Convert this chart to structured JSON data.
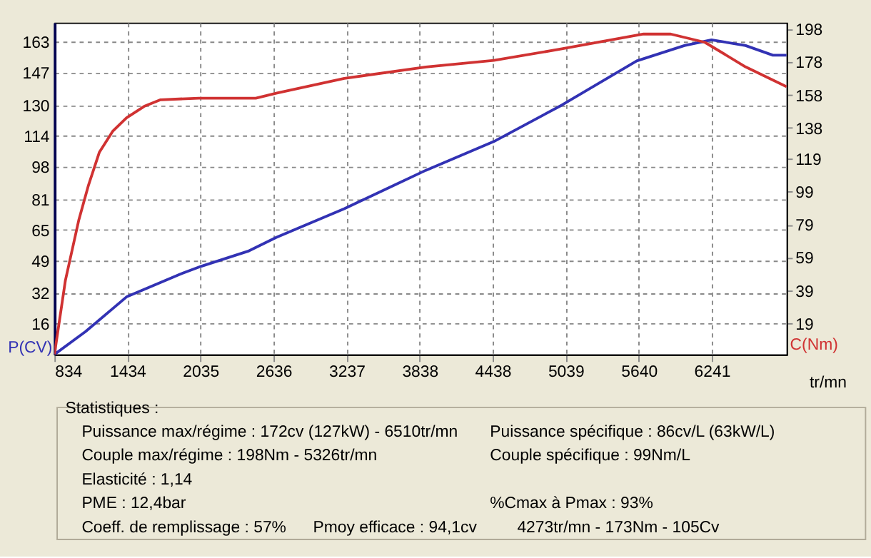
{
  "chart_data": {
    "type": "line",
    "xlabel": "tr/mn",
    "ylabel": "P(CV)",
    "y2label": "C(Nm)",
    "xlim": [
      834,
      6856
    ],
    "xticks": [
      834,
      1434,
      2035,
      2636,
      3237,
      3838,
      4438,
      5039,
      5640,
      6241
    ],
    "ylim": [
      0,
      173
    ],
    "yticks": [
      16,
      32,
      49,
      65,
      81,
      98,
      114,
      130,
      147,
      163
    ],
    "y2lim": [
      0,
      202
    ],
    "y2ticks": [
      19,
      39,
      59,
      79,
      99,
      119,
      138,
      158,
      178,
      198
    ],
    "grid": true,
    "line_style": "solid",
    "series": [
      {
        "color": "#3232b4",
        "axis": "y",
        "x": [
          834,
          1091,
          1427,
          1875,
          2043,
          2434,
          2658,
          3218,
          3889,
          4448,
          5008,
          5623,
          6015,
          6238,
          6519,
          6743,
          6856
        ],
        "values": [
          0,
          12,
          30,
          42,
          46,
          54,
          61,
          76,
          96,
          111,
          130,
          153,
          161,
          164,
          161,
          156,
          156
        ]
      },
      {
        "color": "#d03232",
        "axis": "y2",
        "x": [
          834,
          924,
          1035,
          1114,
          1203,
          1315,
          1427,
          1572,
          1707,
          2020,
          2244,
          2490,
          2658,
          3218,
          3889,
          4448,
          5008,
          5679,
          5903,
          6183,
          6519,
          6856
        ],
        "values": [
          0,
          45,
          82,
          103,
          123,
          136,
          144,
          151,
          155,
          156,
          156,
          156,
          159,
          168,
          175,
          179,
          186,
          195,
          195,
          190,
          175,
          163
        ]
      }
    ],
    "annotations": [
      "Statistiques :",
      "Puissance max/régime : 172cv (127kW) - 6510tr/mn",
      "Couple max/régime : 198Nm - 5326tr/mn",
      "Elasticité : 1,14",
      "PME : 12,4bar",
      "Coeff. de remplissage : 57%",
      "Pmoy efficace : 94,1cv",
      "Puissance spécifique : 86cv/L (63kW/L)",
      "Couple spécifique : 99Nm/L",
      "%Cmax à Pmax : 93%",
      "4273tr/mn - 173Nm - 105Cv"
    ]
  }
}
